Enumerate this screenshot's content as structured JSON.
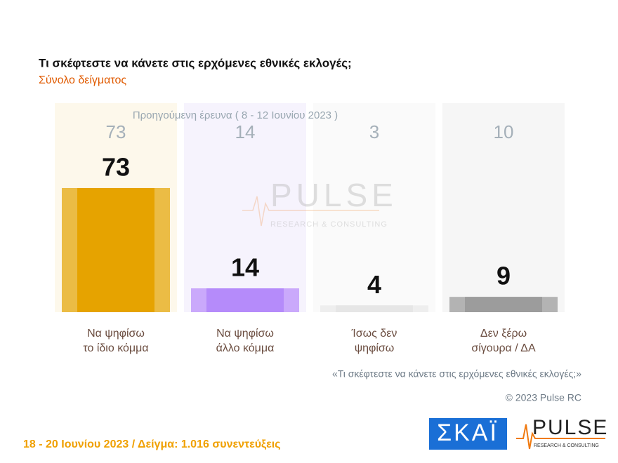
{
  "chart_data": {
    "type": "bar",
    "title": "Τι σκέφτεστε να κάνετε στις ερχόμενες εθνικές εκλογές;",
    "subtitle": "Σύνολο δείγματος",
    "categories": [
      "Να ψηφίσω\nτο ίδιο κόμμα",
      "Να ψηφίσω\nάλλο κόμμα",
      "Ίσως δεν\nψηφίσω",
      "Δεν ξέρω\nσίγουρα / ΔΑ"
    ],
    "values": [
      73,
      14,
      4,
      9
    ],
    "colors": [
      "#e6a300",
      "#b58bfa",
      "#e6e6e6",
      "#9c9c9c"
    ],
    "edge_colors": [
      "#ebbc45",
      "#caa9fb",
      "#eeeeee",
      "#b3b3b3"
    ],
    "column_colors": [
      "#fdf8eb",
      "#f6f3fd",
      "#fafafa",
      "#f6f6f6"
    ],
    "ylim": [
      0,
      100
    ],
    "previous": {
      "label": "Προηγούμενη έρευνα ( 8 - 12 Ιουνίου 2023 )",
      "values": [
        73,
        14,
        3,
        10
      ]
    },
    "question_note": "«Τι σκέφτεστε να κάνετε στις ερχόμενες εθνικές εκλογές;»",
    "copyright": "© 2023 Pulse RC",
    "footer": "18 - 20 Ιουνίου 2023 / Δείγμα: 1.016 συνεντεύξεις",
    "logos": {
      "skai": "ΣΚΑΪ",
      "pulse": "PULSE",
      "pulse_sub": "RESEARCH & CONSULTING"
    }
  }
}
